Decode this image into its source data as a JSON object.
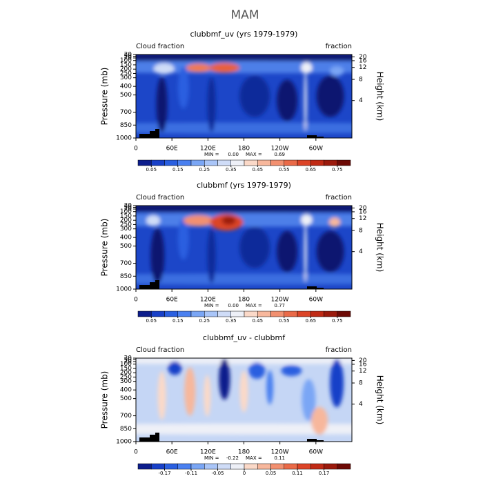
{
  "title": "MAM",
  "chart_data": [
    {
      "type": "contour",
      "title": "clubbmf_uv (yrs 1979-1979)",
      "left_label": "Cloud fraction",
      "right_label": "fraction",
      "ylabel": "Pressure (mb)",
      "y2label": "Height (km)",
      "xlim": [
        0,
        360
      ],
      "xticks": [
        0,
        {
          "value": 60,
          "label": "60E"
        },
        {
          "value": 120,
          "label": "120E"
        },
        180,
        {
          "value": 240,
          "label": "120W"
        },
        {
          "value": 300,
          "label": "60W"
        }
      ],
      "ylim": [
        1000,
        30
      ],
      "yticks": [
        1000,
        850,
        700,
        500,
        400,
        300,
        250,
        200,
        150,
        100,
        70,
        50,
        30
      ],
      "y2ticks": [
        4,
        8,
        12,
        16,
        20
      ],
      "stats": {
        "min_label": "MIN =",
        "min": {
          "value": 0,
          "label": "0.00"
        },
        "max_label": "MAX =",
        "max": 0.69
      },
      "colorbar": {
        "colors": [
          "#0c1d8c",
          "#1840c8",
          "#2a5fe0",
          "#4a80f0",
          "#7aa6f5",
          "#a9c5f8",
          "#cfdcf7",
          "#eef0f7",
          "#fbd9c8",
          "#f7b79c",
          "#f29070",
          "#ea6a48",
          "#dc4427",
          "#c02a15",
          "#9b1a0c",
          "#6d0a05"
        ],
        "ticks": [
          0.05,
          0.15,
          0.25,
          0.35,
          0.45,
          0.55,
          0.65,
          0.75
        ]
      }
    },
    {
      "type": "contour",
      "title": "clubbmf (yrs 1979-1979)",
      "left_label": "Cloud fraction",
      "right_label": "fraction",
      "ylabel": "Pressure (mb)",
      "y2label": "Height (km)",
      "xlim": [
        0,
        360
      ],
      "xticks": [
        0,
        {
          "value": 60,
          "label": "60E"
        },
        {
          "value": 120,
          "label": "120E"
        },
        180,
        {
          "value": 240,
          "label": "120W"
        },
        {
          "value": 300,
          "label": "60W"
        }
      ],
      "ylim": [
        1000,
        30
      ],
      "yticks": [
        1000,
        850,
        700,
        500,
        400,
        300,
        250,
        200,
        150,
        100,
        70,
        50,
        30
      ],
      "y2ticks": [
        4,
        8,
        12,
        16,
        20
      ],
      "stats": {
        "min_label": "MIN =",
        "min": {
          "value": 0,
          "label": "0.00"
        },
        "max_label": "MAX =",
        "max": 0.77
      },
      "colorbar": {
        "colors": [
          "#0c1d8c",
          "#1840c8",
          "#2a5fe0",
          "#4a80f0",
          "#7aa6f5",
          "#a9c5f8",
          "#cfdcf7",
          "#eef0f7",
          "#fbd9c8",
          "#f7b79c",
          "#f29070",
          "#ea6a48",
          "#dc4427",
          "#c02a15",
          "#9b1a0c",
          "#6d0a05"
        ],
        "ticks": [
          0.05,
          0.15,
          0.25,
          0.35,
          0.45,
          0.55,
          0.65,
          0.75
        ]
      }
    },
    {
      "type": "contour",
      "title": "clubbmf_uv - clubbmf",
      "left_label": "Cloud fraction",
      "right_label": "fraction",
      "ylabel": "Pressure (mb)",
      "y2label": "Height (km)",
      "xlim": [
        0,
        360
      ],
      "xticks": [
        0,
        {
          "value": 60,
          "label": "60E"
        },
        {
          "value": 120,
          "label": "120E"
        },
        180,
        {
          "value": 240,
          "label": "120W"
        },
        {
          "value": 300,
          "label": "60W"
        }
      ],
      "ylim": [
        1000,
        30
      ],
      "yticks": [
        1000,
        850,
        700,
        500,
        400,
        300,
        250,
        200,
        150,
        100,
        70,
        50,
        30
      ],
      "y2ticks": [
        4,
        8,
        12,
        16,
        20
      ],
      "stats": {
        "min_label": "MIN =",
        "min": -0.22,
        "max_label": "MAX =",
        "max": 0.11
      },
      "colorbar": {
        "colors": [
          "#0c1d8c",
          "#1840c8",
          "#2a5fe0",
          "#4a80f0",
          "#7aa6f5",
          "#a9c5f8",
          "#cfdcf7",
          "#eef0f7",
          "#fbd9c8",
          "#f7b79c",
          "#f29070",
          "#ea6a48",
          "#dc4427",
          "#c02a15",
          "#9b1a0c",
          "#6d0a05"
        ],
        "ticks": [
          -0.17,
          -0.11,
          -0.05,
          0,
          0.05,
          0.11,
          0.17
        ]
      }
    }
  ]
}
